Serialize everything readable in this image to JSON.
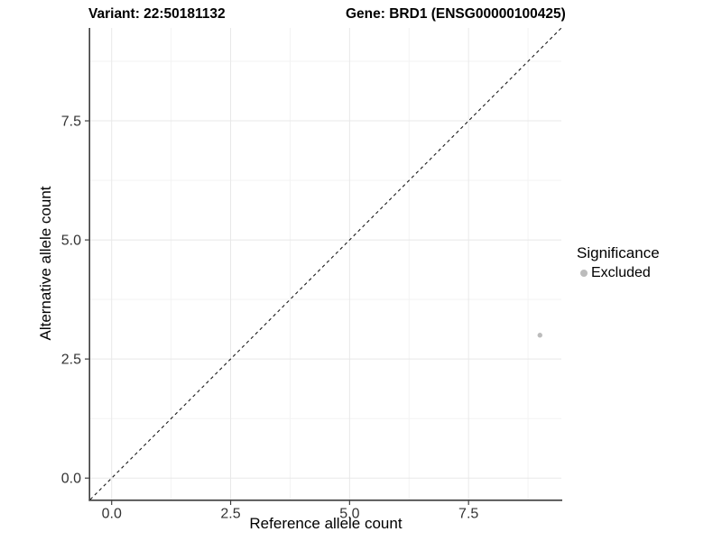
{
  "title": {
    "variant": "Variant: 22:50181132",
    "gene": "Gene: BRD1 (ENSG00000100425)"
  },
  "chart_data": {
    "type": "scatter",
    "xlabel": "Reference allele count",
    "ylabel": "Alternative allele count",
    "xlim": [
      -0.45,
      9.45
    ],
    "ylim": [
      -0.45,
      9.45
    ],
    "x_ticks": {
      "values": [
        0,
        2.5,
        5,
        7.5
      ],
      "labels": [
        "0.0",
        "2.5",
        "5.0",
        "7.5"
      ]
    },
    "y_ticks": {
      "values": [
        0,
        2.5,
        5,
        7.5
      ],
      "labels": [
        "0.0",
        "2.5",
        "5.0",
        "7.5"
      ]
    },
    "minor_breaks": [
      1.25,
      3.75,
      6.25,
      8.75
    ],
    "grid": true,
    "points": [
      {
        "x": 9,
        "y": 3,
        "significance": "Excluded"
      }
    ],
    "identity_line": {
      "slope": 1,
      "intercept": 0,
      "style": "dashed",
      "color": "#1a1a1a"
    },
    "legend": {
      "title": "Significance",
      "position": "right",
      "items": [
        {
          "label": "Excluded",
          "color": "#bcbcbc"
        }
      ]
    },
    "colors": {
      "point": "#bcbcbc",
      "grid_major": "#e8e8e8",
      "grid_minor": "#f3f3f3",
      "axis": "#3c3c3c",
      "tick_label": "#333333"
    }
  }
}
